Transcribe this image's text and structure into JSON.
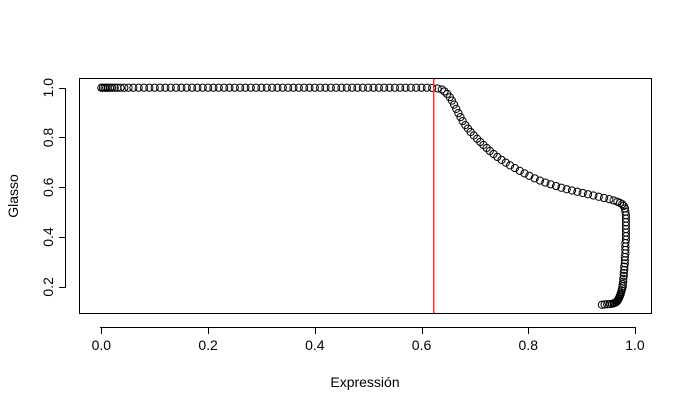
{
  "chart_data": {
    "type": "scatter",
    "title": "",
    "xlabel": "Expressión",
    "ylabel": "Glasso",
    "xlim": [
      -0.04,
      1.03
    ],
    "ylim": [
      0.095,
      1.035
    ],
    "xticks": [
      0.0,
      0.2,
      0.4,
      0.6,
      0.8,
      1.0
    ],
    "xtick_labels": [
      "0.0",
      "0.2",
      "0.4",
      "0.6",
      "0.8",
      "1.0"
    ],
    "yticks": [
      0.2,
      0.4,
      0.6,
      0.8,
      1.0
    ],
    "ytick_labels": [
      "0.2",
      "0.4",
      "0.6",
      "0.8",
      "1.0"
    ],
    "grid": false,
    "legend": "none",
    "marker": "open-circle",
    "marker_color": "#000000",
    "threshold_line": {
      "orientation": "vertical",
      "x": 0.623,
      "color": "#ff3030"
    },
    "series": [
      {
        "x": [
          0.0,
          0.003,
          0.006,
          0.009,
          0.012,
          0.016,
          0.02,
          0.025,
          0.03,
          0.036,
          0.043,
          0.051,
          0.06,
          0.07,
          0.08,
          0.09,
          0.1,
          0.11,
          0.12,
          0.13,
          0.14,
          0.15,
          0.16,
          0.17,
          0.18,
          0.19,
          0.2,
          0.21,
          0.22,
          0.23,
          0.24,
          0.25,
          0.26,
          0.27,
          0.28,
          0.29,
          0.3,
          0.31,
          0.32,
          0.33,
          0.34,
          0.35,
          0.36,
          0.37,
          0.38,
          0.39,
          0.4,
          0.41,
          0.42,
          0.43,
          0.44,
          0.45,
          0.46,
          0.47,
          0.48,
          0.49,
          0.5,
          0.51,
          0.52,
          0.53,
          0.54,
          0.55,
          0.56,
          0.57,
          0.58,
          0.59,
          0.6,
          0.61,
          0.62,
          0.63,
          0.638,
          0.643,
          0.648,
          0.653,
          0.657,
          0.661,
          0.665,
          0.669,
          0.673,
          0.677,
          0.682,
          0.687,
          0.692,
          0.698,
          0.704,
          0.71,
          0.716,
          0.722,
          0.728,
          0.735,
          0.742,
          0.75,
          0.758,
          0.766,
          0.775,
          0.784,
          0.793,
          0.802,
          0.812,
          0.822,
          0.832,
          0.842,
          0.852,
          0.862,
          0.872,
          0.882,
          0.892,
          0.902,
          0.912,
          0.922,
          0.932,
          0.942,
          0.952,
          0.96,
          0.967,
          0.972,
          0.976,
          0.979,
          0.981,
          0.982,
          0.983,
          0.983,
          0.983,
          0.983,
          0.983,
          0.983,
          0.983,
          0.983,
          0.982,
          0.982,
          0.982,
          0.982,
          0.981,
          0.981,
          0.981,
          0.98,
          0.98,
          0.979,
          0.979,
          0.978,
          0.978,
          0.977,
          0.977,
          0.976,
          0.975,
          0.974,
          0.973,
          0.972,
          0.971,
          0.97,
          0.969,
          0.968,
          0.967,
          0.966,
          0.964,
          0.962,
          0.96,
          0.957,
          0.953,
          0.948,
          0.943,
          0.938
        ],
        "y": [
          1.0,
          1.0,
          1.0,
          1.0,
          1.0,
          1.0,
          1.0,
          1.0,
          1.0,
          1.0,
          1.0,
          1.0,
          1.0,
          1.0,
          1.0,
          1.0,
          1.0,
          1.0,
          1.0,
          1.0,
          1.0,
          1.0,
          1.0,
          1.0,
          1.0,
          1.0,
          1.0,
          1.0,
          1.0,
          1.0,
          1.0,
          1.0,
          1.0,
          1.0,
          1.0,
          1.0,
          1.0,
          1.0,
          1.0,
          1.0,
          1.0,
          1.0,
          1.0,
          1.0,
          1.0,
          1.0,
          1.0,
          1.0,
          1.0,
          1.0,
          1.0,
          1.0,
          1.0,
          1.0,
          1.0,
          1.0,
          1.0,
          1.0,
          1.0,
          1.0,
          1.0,
          1.0,
          1.0,
          1.0,
          1.0,
          1.0,
          1.0,
          1.0,
          0.999,
          0.997,
          0.993,
          0.985,
          0.975,
          0.962,
          0.948,
          0.932,
          0.915,
          0.898,
          0.882,
          0.866,
          0.85,
          0.836,
          0.822,
          0.808,
          0.795,
          0.782,
          0.77,
          0.758,
          0.746,
          0.734,
          0.722,
          0.71,
          0.699,
          0.688,
          0.677,
          0.666,
          0.656,
          0.646,
          0.636,
          0.627,
          0.619,
          0.612,
          0.605,
          0.598,
          0.592,
          0.587,
          0.582,
          0.577,
          0.572,
          0.567,
          0.562,
          0.557,
          0.552,
          0.547,
          0.542,
          0.537,
          0.532,
          0.525,
          0.515,
          0.502,
          0.488,
          0.474,
          0.46,
          0.446,
          0.432,
          0.418,
          0.404,
          0.39,
          0.376,
          0.362,
          0.348,
          0.334,
          0.32,
          0.307,
          0.294,
          0.281,
          0.268,
          0.256,
          0.244,
          0.232,
          0.221,
          0.211,
          0.202,
          0.194,
          0.186,
          0.178,
          0.171,
          0.165,
          0.16,
          0.155,
          0.151,
          0.147,
          0.144,
          0.141,
          0.138,
          0.136,
          0.134,
          0.132,
          0.131,
          0.13,
          0.129,
          0.128
        ]
      }
    ]
  }
}
